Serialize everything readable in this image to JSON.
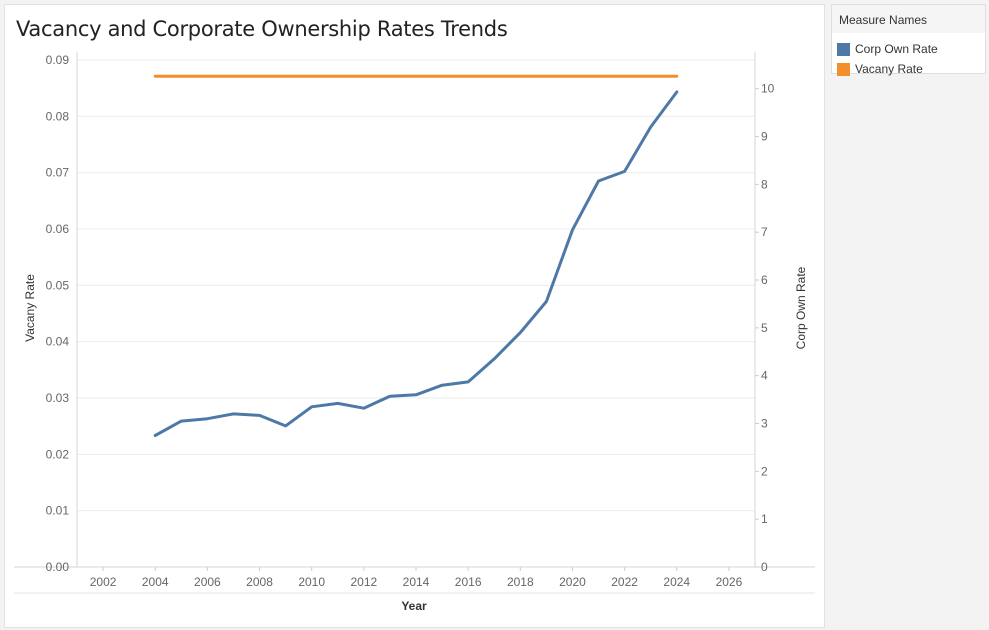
{
  "legend": {
    "title": "Measure Names",
    "items": [
      {
        "label": "Corp Own Rate",
        "color": "#4e79a7"
      },
      {
        "label": "Vacany Rate",
        "color": "#f28e2b"
      }
    ]
  },
  "chart_data": {
    "type": "line",
    "title": "Vacancy and Corporate Ownership Rates Trends",
    "xlabel": "Year",
    "ylabel_left": "Vacany Rate",
    "ylabel_right": "Corp Own Rate",
    "xlim": [
      2001,
      2027
    ],
    "x_ticks": [
      "2002",
      "2004",
      "2006",
      "2008",
      "2010",
      "2012",
      "2014",
      "2016",
      "2018",
      "2020",
      "2022",
      "2024",
      "2026"
    ],
    "ylim_left": [
      0,
      0.09
    ],
    "y_left_ticks": [
      "0.00",
      "0.01",
      "0.02",
      "0.03",
      "0.04",
      "0.05",
      "0.06",
      "0.07",
      "0.08",
      "0.09"
    ],
    "ylim_right": [
      0,
      10.6
    ],
    "y_right_ticks": [
      "0",
      "1",
      "2",
      "3",
      "4",
      "5",
      "6",
      "7",
      "8",
      "9",
      "10"
    ],
    "grid": "horizontal",
    "legend_position": "top-right",
    "series": [
      {
        "name": "Corp Own Rate",
        "axis": "right",
        "color": "#4e79a7",
        "x": [
          2004,
          2005,
          2006,
          2007,
          2008,
          2009,
          2010,
          2011,
          2012,
          2013,
          2014,
          2015,
          2016,
          2017,
          2018,
          2019,
          2020,
          2021,
          2022,
          2023,
          2024
        ],
        "values": [
          2.75,
          3.05,
          3.1,
          3.2,
          3.17,
          2.95,
          3.35,
          3.42,
          3.32,
          3.57,
          3.6,
          3.8,
          3.87,
          4.35,
          4.9,
          5.55,
          7.05,
          8.07,
          8.27,
          9.2,
          9.93
        ]
      },
      {
        "name": "Vacany Rate",
        "axis": "left",
        "color": "#f28e2b",
        "x": [
          2004,
          2005,
          2006,
          2007,
          2008,
          2009,
          2010,
          2011,
          2012,
          2013,
          2014,
          2015,
          2016,
          2017,
          2018,
          2019,
          2020,
          2021,
          2022,
          2023,
          2024
        ],
        "values": [
          0.0871,
          0.0871,
          0.0871,
          0.0871,
          0.0871,
          0.0871,
          0.0871,
          0.0871,
          0.0871,
          0.0871,
          0.0871,
          0.0871,
          0.0871,
          0.0871,
          0.0871,
          0.0871,
          0.0871,
          0.0871,
          0.0871,
          0.0871,
          0.0871
        ]
      }
    ]
  }
}
